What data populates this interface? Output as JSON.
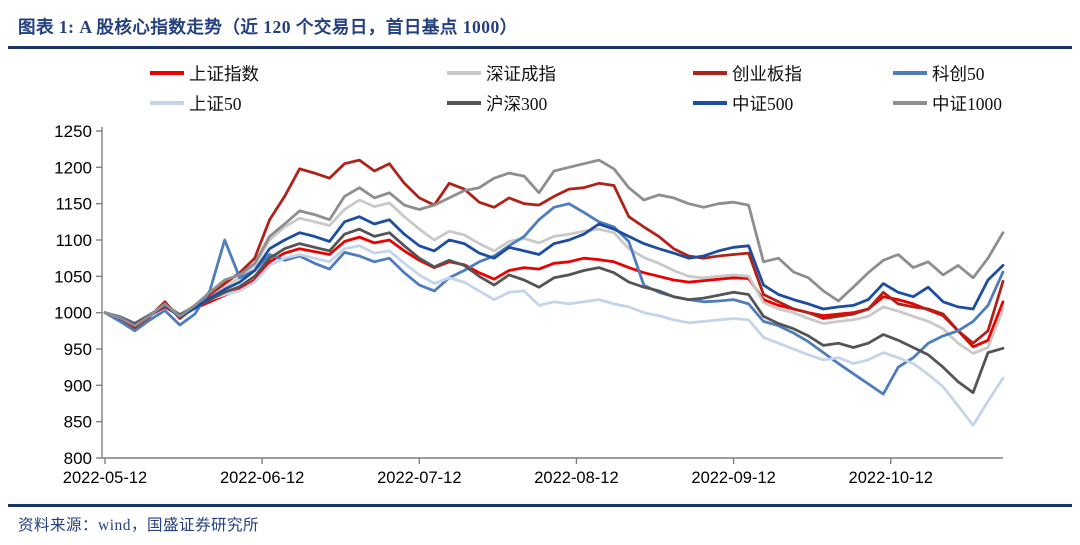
{
  "header": {
    "title": "图表 1:  A 股核心指数走势（近 120 个交易日，首日基点 1000）"
  },
  "footer": {
    "source": "资料来源：wind，国盛证券研究所"
  },
  "chart_data": {
    "type": "line",
    "title": "A股核心指数走势（近120个交易日，首日基点1000）",
    "xlabel": "",
    "ylabel": "",
    "ylim": [
      800,
      1250
    ],
    "y_ticks": [
      800,
      850,
      900,
      950,
      1000,
      1050,
      1100,
      1150,
      1200,
      1250
    ],
    "x_tick_labels": [
      "2022-05-12",
      "2022-06-12",
      "2022-07-12",
      "2022-08-12",
      "2022-09-12",
      "2022-10-12"
    ],
    "x_tick_day_index": [
      0,
      21,
      42,
      63,
      84,
      105
    ],
    "n_days": 120,
    "day_step": 2,
    "grid": false,
    "legend_position": "top",
    "base_point": 1000,
    "series": [
      {
        "id": "sse-index",
        "name": "上证指数",
        "color": "#EC0000",
        "values": [
          1000,
          994,
          984,
          996,
          1008,
          996,
          1006,
          1015,
          1024,
          1032,
          1045,
          1070,
          1082,
          1088,
          1084,
          1080,
          1098,
          1104,
          1096,
          1100,
          1085,
          1072,
          1062,
          1070,
          1066,
          1055,
          1046,
          1058,
          1062,
          1060,
          1068,
          1070,
          1075,
          1073,
          1070,
          1062,
          1055,
          1050,
          1045,
          1042,
          1044,
          1046,
          1048,
          1047,
          1018,
          1010,
          1005,
          1000,
          996,
          998,
          1000,
          1005,
          1022,
          1018,
          1012,
          1004,
          996,
          975,
          953,
          962,
          1015
        ]
      },
      {
        "id": "szse-component",
        "name": "深证成指",
        "color": "#C9C9C9",
        "values": [
          1000,
          992,
          980,
          995,
          1012,
          998,
          1010,
          1022,
          1035,
          1048,
          1065,
          1100,
          1118,
          1130,
          1125,
          1120,
          1142,
          1155,
          1146,
          1151,
          1132,
          1115,
          1100,
          1112,
          1107,
          1095,
          1085,
          1098,
          1102,
          1096,
          1105,
          1108,
          1112,
          1115,
          1110,
          1088,
          1076,
          1068,
          1058,
          1050,
          1048,
          1050,
          1052,
          1050,
          1014,
          1005,
          1000,
          992,
          985,
          988,
          990,
          995,
          1008,
          1002,
          995,
          988,
          978,
          958,
          944,
          952,
          1005
        ]
      },
      {
        "id": "chinext",
        "name": "创业板指",
        "color": "#B02118",
        "values": [
          1000,
          990,
          978,
          995,
          1015,
          992,
          1008,
          1025,
          1040,
          1055,
          1075,
          1128,
          1160,
          1198,
          1192,
          1185,
          1205,
          1210,
          1195,
          1205,
          1178,
          1158,
          1148,
          1178,
          1170,
          1152,
          1145,
          1158,
          1150,
          1148,
          1160,
          1170,
          1172,
          1178,
          1175,
          1132,
          1118,
          1105,
          1088,
          1078,
          1075,
          1078,
          1080,
          1082,
          1025,
          1015,
          1005,
          1000,
          992,
          995,
          998,
          1005,
          1028,
          1012,
          1008,
          1005,
          998,
          975,
          958,
          975,
          1043
        ]
      },
      {
        "id": "star50",
        "name": "科创50",
        "color": "#4E7DBE",
        "values": [
          1000,
          988,
          975,
          990,
          1003,
          983,
          998,
          1030,
          1100,
          1048,
          1058,
          1080,
          1072,
          1078,
          1068,
          1060,
          1083,
          1078,
          1070,
          1075,
          1055,
          1038,
          1030,
          1048,
          1058,
          1070,
          1078,
          1092,
          1105,
          1128,
          1145,
          1150,
          1138,
          1125,
          1118,
          1098,
          1038,
          1028,
          1022,
          1018,
          1015,
          1016,
          1018,
          1012,
          988,
          982,
          972,
          960,
          945,
          930,
          916,
          902,
          888,
          925,
          938,
          958,
          968,
          975,
          988,
          1010,
          1056
        ]
      },
      {
        "id": "sse50",
        "name": "上证50",
        "color": "#C3D4EB",
        "values": [
          1000,
          995,
          986,
          998,
          1010,
          998,
          1008,
          1018,
          1025,
          1030,
          1042,
          1065,
          1075,
          1080,
          1075,
          1070,
          1088,
          1092,
          1082,
          1085,
          1068,
          1052,
          1040,
          1048,
          1042,
          1030,
          1018,
          1028,
          1030,
          1010,
          1015,
          1012,
          1015,
          1018,
          1012,
          1008,
          1000,
          996,
          990,
          986,
          988,
          990,
          992,
          990,
          966,
          958,
          950,
          942,
          935,
          938,
          930,
          935,
          945,
          938,
          930,
          915,
          898,
          872,
          845,
          878,
          910
        ]
      },
      {
        "id": "csi300",
        "name": "沪深300",
        "color": "#545454",
        "values": [
          1000,
          994,
          985,
          997,
          1010,
          997,
          1008,
          1018,
          1028,
          1036,
          1050,
          1075,
          1088,
          1095,
          1090,
          1085,
          1108,
          1115,
          1105,
          1110,
          1092,
          1075,
          1063,
          1072,
          1065,
          1050,
          1038,
          1052,
          1045,
          1035,
          1048,
          1052,
          1058,
          1062,
          1055,
          1042,
          1035,
          1030,
          1022,
          1018,
          1020,
          1024,
          1028,
          1025,
          995,
          985,
          978,
          968,
          955,
          958,
          952,
          958,
          970,
          962,
          952,
          942,
          925,
          905,
          890,
          945,
          951
        ]
      },
      {
        "id": "csi500",
        "name": "中证500",
        "color": "#1B4DA1",
        "values": [
          1000,
          993,
          983,
          996,
          1010,
          994,
          1006,
          1020,
          1032,
          1042,
          1058,
          1088,
          1100,
          1110,
          1105,
          1098,
          1125,
          1132,
          1122,
          1128,
          1108,
          1092,
          1085,
          1100,
          1095,
          1082,
          1075,
          1090,
          1085,
          1080,
          1095,
          1100,
          1108,
          1122,
          1115,
          1105,
          1095,
          1088,
          1082,
          1075,
          1078,
          1085,
          1090,
          1092,
          1038,
          1025,
          1018,
          1012,
          1005,
          1008,
          1010,
          1018,
          1040,
          1028,
          1022,
          1035,
          1015,
          1008,
          1005,
          1045,
          1065
        ]
      },
      {
        "id": "csi1000",
        "name": "中证1000",
        "color": "#8E8E8E",
        "values": [
          1000,
          993,
          982,
          996,
          1012,
          995,
          1010,
          1028,
          1045,
          1052,
          1068,
          1105,
          1122,
          1140,
          1135,
          1128,
          1160,
          1172,
          1158,
          1165,
          1148,
          1142,
          1148,
          1158,
          1168,
          1172,
          1185,
          1192,
          1188,
          1165,
          1195,
          1200,
          1205,
          1210,
          1198,
          1172,
          1155,
          1162,
          1158,
          1150,
          1145,
          1150,
          1152,
          1148,
          1070,
          1075,
          1056,
          1048,
          1030,
          1016,
          1035,
          1055,
          1072,
          1080,
          1062,
          1070,
          1052,
          1065,
          1048,
          1075,
          1110
        ]
      }
    ]
  },
  "colors": {
    "title_text": "#24407F",
    "rule": "#1C3568",
    "axis": "#7F7F7F",
    "tick_label": "#000000"
  }
}
